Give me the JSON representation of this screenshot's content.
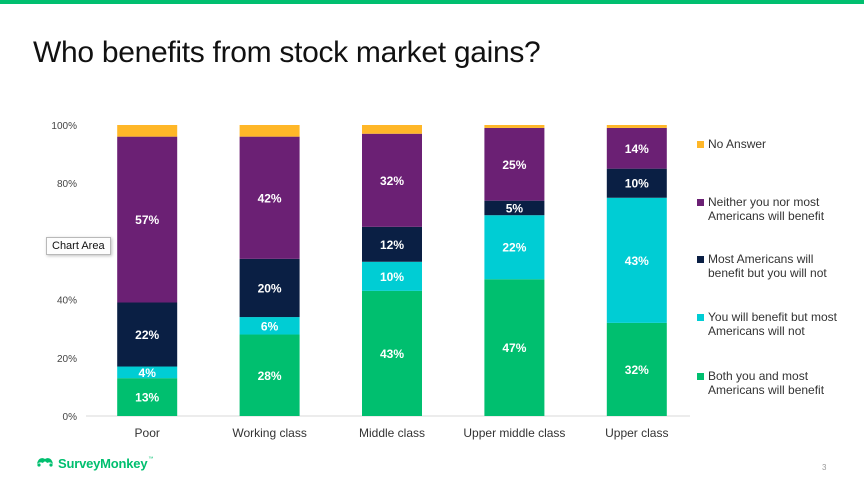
{
  "slide": {
    "title": "Who benefits from stock market gains?",
    "page_number": "3",
    "accent_color": "#00bf6f"
  },
  "brand": {
    "name": "SurveyMonkey",
    "trademark": "™",
    "icon": "surveymonkey-logo-icon"
  },
  "tooltip": {
    "text": "Chart Area"
  },
  "chart_data": {
    "type": "bar",
    "stacked": true,
    "title": "",
    "xlabel": "",
    "ylabel": "",
    "ylim": [
      0,
      100
    ],
    "y_ticks": [
      "0%",
      "20%",
      "40%",
      "60%",
      "80%",
      "100%"
    ],
    "grid": false,
    "legend_position": "right",
    "categories": [
      "Poor",
      "Working class",
      "Middle class",
      "Upper middle class",
      "Upper class"
    ],
    "series": [
      {
        "name": "Both you and most Americans will benefit",
        "color": "#00bf6f",
        "values": [
          13,
          28,
          43,
          47,
          32
        ],
        "labels": [
          "13%",
          "28%",
          "43%",
          "47%",
          "32%"
        ]
      },
      {
        "name": "You will benefit but most Americans will not",
        "color": "#00cdd4",
        "values": [
          4,
          6,
          10,
          22,
          43
        ],
        "labels": [
          "4%",
          "6%",
          "10%",
          "22%",
          "43%"
        ]
      },
      {
        "name": "Most Americans will benefit but you will not",
        "color": "#0a1f44",
        "values": [
          22,
          20,
          12,
          5,
          10
        ],
        "labels": [
          "22%",
          "20%",
          "12%",
          "5%",
          "10%"
        ]
      },
      {
        "name": "Neither you nor most Americans will benefit",
        "color": "#6b2074",
        "values": [
          57,
          42,
          32,
          25,
          14
        ],
        "labels": [
          "57%",
          "42%",
          "32%",
          "25%",
          "14%"
        ]
      },
      {
        "name": "No Answer",
        "color": "#ffb728",
        "values": [
          4,
          4,
          3,
          1,
          1
        ],
        "labels": [
          "",
          "",
          "",
          "",
          ""
        ]
      }
    ]
  },
  "legend": {
    "order": [
      4,
      3,
      2,
      1,
      0
    ]
  }
}
